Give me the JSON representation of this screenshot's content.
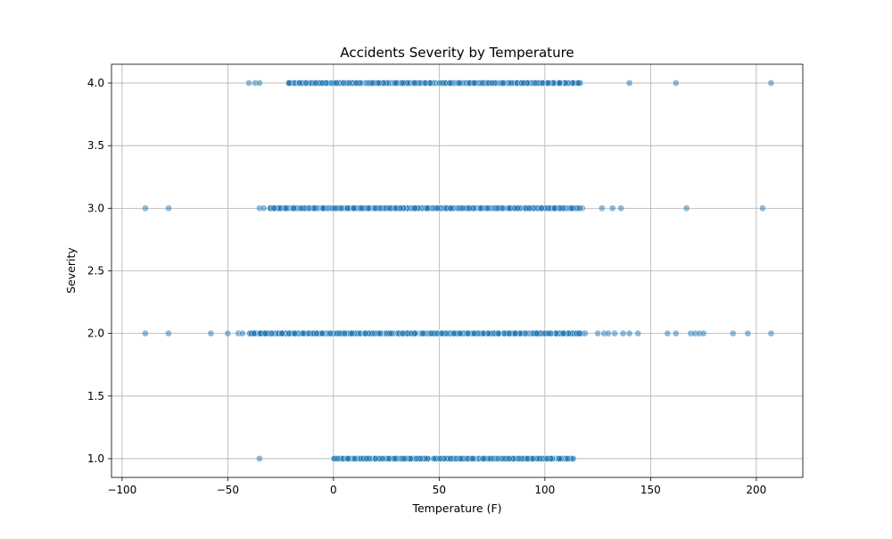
{
  "chart_data": {
    "type": "scatter",
    "title": "Accidents Severity by Temperature",
    "xlabel": "Temperature (F)",
    "ylabel": "Severity",
    "xlim": [
      -105,
      222
    ],
    "ylim": [
      0.85,
      4.15
    ],
    "xticks": [
      -100,
      -50,
      0,
      50,
      100,
      150,
      200
    ],
    "yticks": [
      1.0,
      1.5,
      2.0,
      2.5,
      3.0,
      3.5,
      4.0
    ],
    "xtick_labels": [
      "−100",
      "−50",
      "0",
      "50",
      "100",
      "150",
      "200"
    ],
    "ytick_labels": [
      "1.0",
      "1.5",
      "2.0",
      "2.5",
      "3.0",
      "3.5",
      "4.0"
    ],
    "grid": true,
    "marker_color": "#1f77b4",
    "marker_alpha": 0.5,
    "series": [
      {
        "severity": 4,
        "dense_range": [
          -22,
          117
        ],
        "outliers": [
          -40,
          -37,
          -35,
          140,
          162,
          207
        ]
      },
      {
        "severity": 3,
        "dense_range": [
          -30,
          118
        ],
        "outliers": [
          -89,
          -78,
          -35,
          -33,
          127,
          132,
          136,
          167,
          203
        ]
      },
      {
        "severity": 2,
        "dense_range": [
          -40,
          122
        ],
        "outliers": [
          -89,
          -78,
          -58,
          -50,
          -45,
          -43,
          125,
          128,
          130,
          133,
          137,
          140,
          144,
          158,
          162,
          169,
          171,
          173,
          175,
          189,
          196,
          207
        ]
      },
      {
        "severity": 1,
        "dense_range": [
          0,
          114
        ],
        "outliers": [
          -35
        ]
      }
    ]
  }
}
